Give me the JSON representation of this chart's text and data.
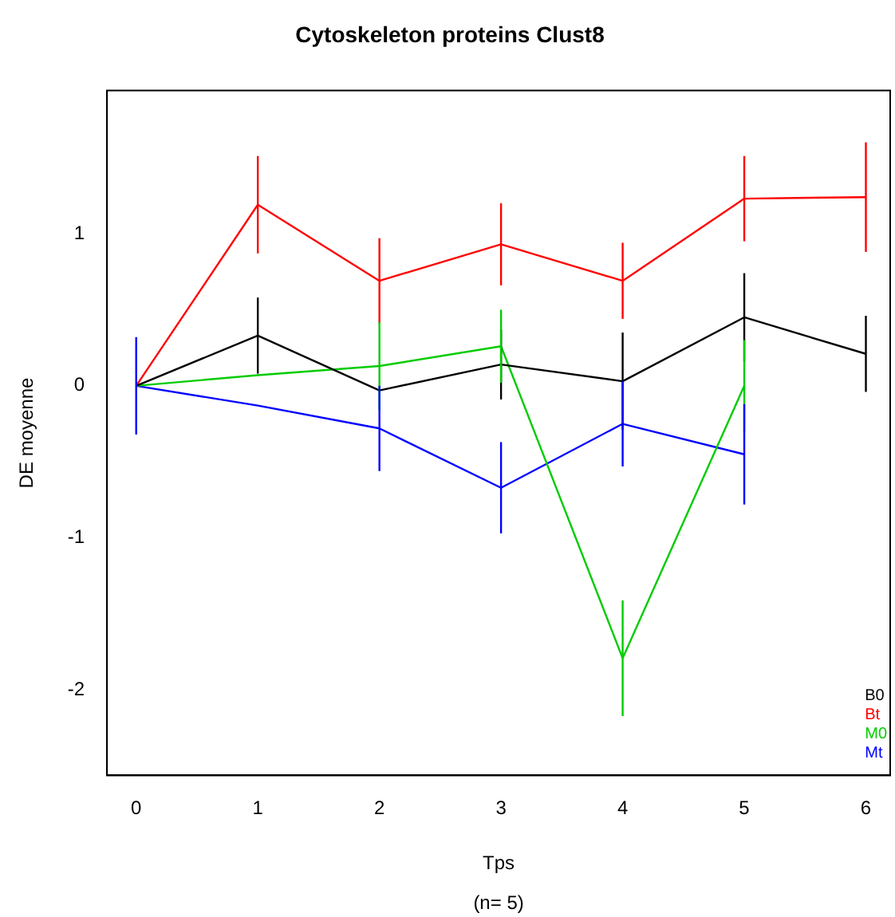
{
  "chart_data": {
    "type": "line",
    "title": "Cytoskeleton proteins Clust8",
    "xlabel": "Tps",
    "ylabel": "DE moyenne",
    "annotations": [
      "(n= 5)"
    ],
    "x": [
      0,
      1,
      2,
      3,
      4,
      5,
      6
    ],
    "xlim": [
      -0.24,
      6.2
    ],
    "xticks": [
      0,
      1,
      2,
      3,
      4,
      5,
      6
    ],
    "ylim": [
      -2.56,
      1.94
    ],
    "yticks": [
      -2,
      -1,
      0,
      1
    ],
    "grid": false,
    "legend": "bottom right",
    "marker": "none",
    "line_style": "solid",
    "series": [
      {
        "name": "B0",
        "color": "#000000",
        "values": [
          0,
          0.33,
          -0.03,
          0.14,
          0.03,
          0.45,
          0.21
        ],
        "errors": [
          null,
          0.25,
          null,
          0.23,
          0.32,
          0.29,
          0.25
        ]
      },
      {
        "name": "Bt",
        "color": "#ff0000",
        "values": [
          0,
          1.19,
          0.69,
          0.93,
          0.69,
          1.23,
          1.24
        ],
        "errors": [
          null,
          0.32,
          0.28,
          0.27,
          0.25,
          0.28,
          0.36
        ]
      },
      {
        "name": "M0",
        "color": "#00cc00",
        "values": [
          0,
          0.07,
          0.13,
          0.26,
          -1.79,
          0,
          null
        ],
        "errors": [
          null,
          null,
          0.29,
          0.24,
          0.38,
          0.3,
          null
        ]
      },
      {
        "name": "Mt",
        "color": "#0000ff",
        "values": [
          0,
          -0.13,
          -0.28,
          -0.67,
          -0.25,
          -0.45,
          null
        ],
        "errors": [
          0.32,
          null,
          0.28,
          0.3,
          0.28,
          0.33,
          null
        ]
      }
    ]
  }
}
